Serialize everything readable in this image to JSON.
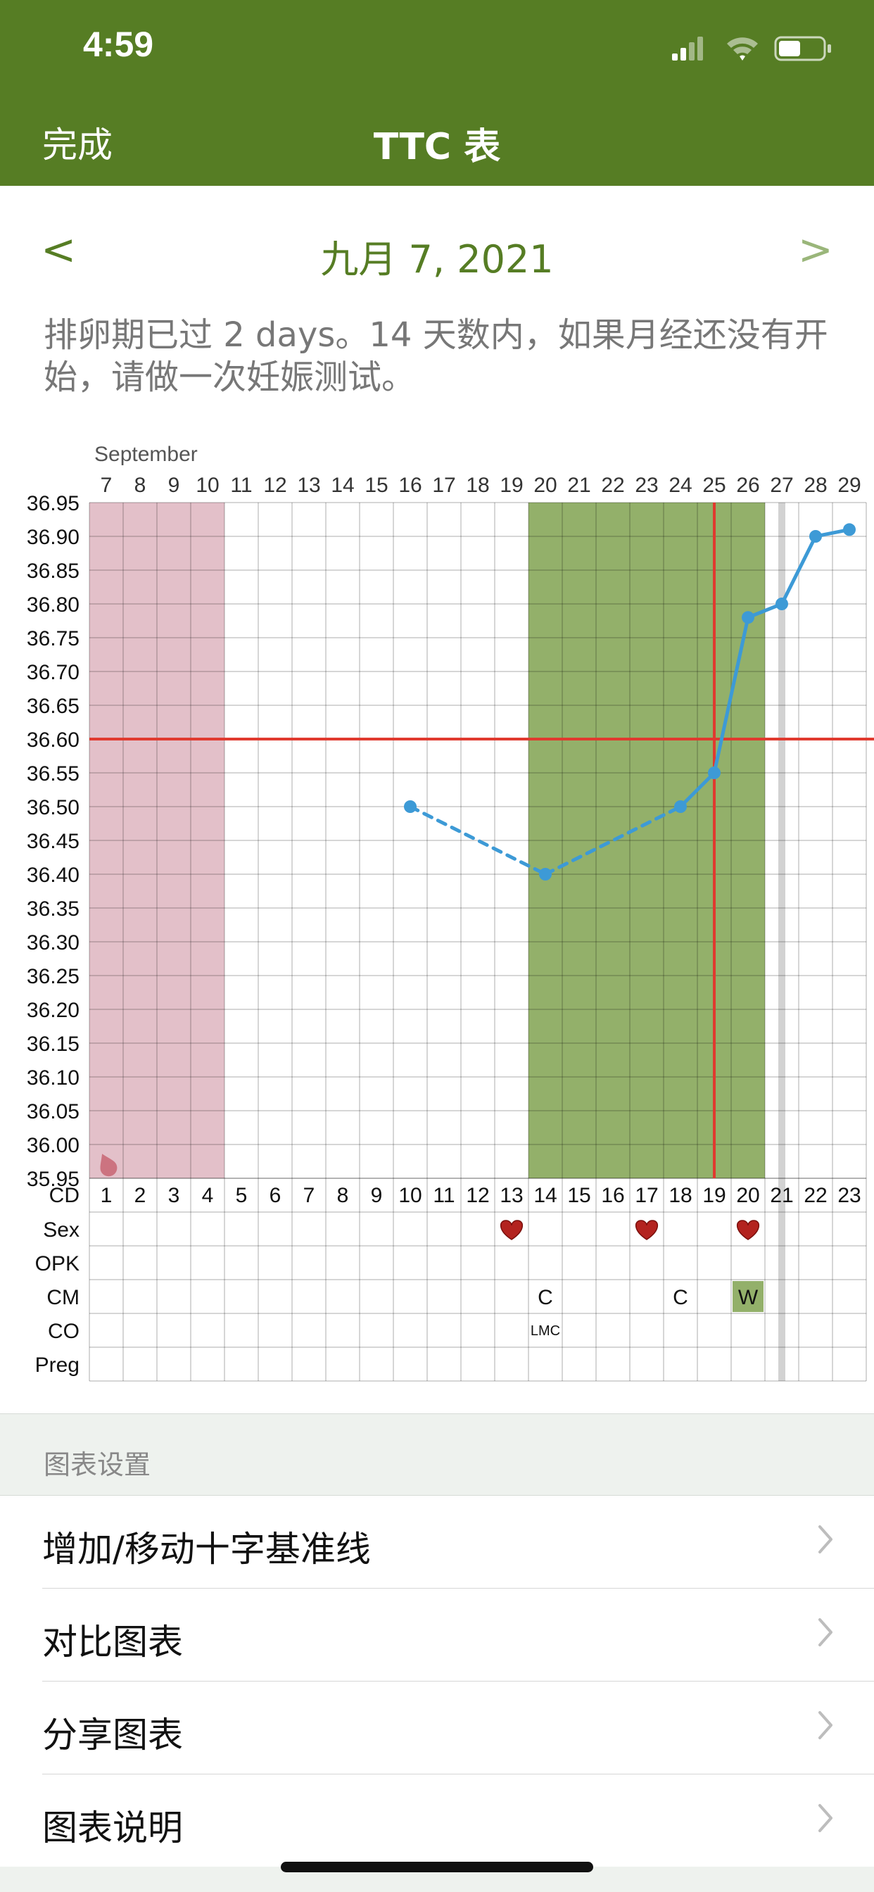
{
  "status_bar": {
    "time": "4:59"
  },
  "nav": {
    "done": "完成",
    "title": "TTC 表"
  },
  "date_nav": {
    "prev": "<",
    "label": "九月 7, 2021",
    "next": ">"
  },
  "message": "排卵期已过 2 days。14 天数内，如果月经还没有开始，请做一次妊娠测试。",
  "chart_data": {
    "type": "line",
    "month_label": "September",
    "dates": [
      "7",
      "8",
      "9",
      "10",
      "11",
      "12",
      "13",
      "14",
      "15",
      "16",
      "17",
      "18",
      "19",
      "20",
      "21",
      "22",
      "23",
      "24",
      "25",
      "26",
      "27",
      "28",
      "29"
    ],
    "cycle_days": [
      "1",
      "2",
      "3",
      "4",
      "5",
      "6",
      "7",
      "8",
      "9",
      "10",
      "11",
      "12",
      "13",
      "14",
      "15",
      "16",
      "17",
      "18",
      "19",
      "20",
      "21",
      "22",
      "23"
    ],
    "y_ticks": [
      "36.95",
      "36.90",
      "36.85",
      "36.80",
      "36.75",
      "36.70",
      "36.65",
      "36.60",
      "36.55",
      "36.50",
      "36.45",
      "36.40",
      "36.35",
      "36.30",
      "36.25",
      "36.20",
      "36.15",
      "36.10",
      "36.05",
      "36.00",
      "35.95"
    ],
    "ylim": [
      35.95,
      36.95
    ],
    "cd_label": "CD",
    "series": [
      {
        "x": [
          10,
          14,
          18,
          19,
          20,
          21,
          22,
          23
        ],
        "values": [
          36.5,
          36.4,
          36.5,
          36.55,
          36.78,
          36.8,
          36.9,
          36.91
        ],
        "color": "#3d9ad6"
      }
    ],
    "dashed_between": [
      [
        10,
        14
      ],
      [
        14,
        18
      ]
    ],
    "coverline": 36.6,
    "ovulation_day": 19,
    "period_days": [
      1,
      4
    ],
    "fertile_window": [
      14,
      20
    ],
    "today_marker_day": 21,
    "colors": {
      "period": "#e3c0c9",
      "fertile": "#93b06a",
      "line": "#3d9ad6",
      "coverline": "#e03a2f",
      "today": "#d2d2d2"
    },
    "rows": [
      {
        "label": "Sex",
        "entries": [
          {
            "day": 13,
            "icon": "heart-icon"
          },
          {
            "day": 17,
            "icon": "heart-icon"
          },
          {
            "day": 20,
            "icon": "heart-icon"
          }
        ]
      },
      {
        "label": "OPK",
        "entries": []
      },
      {
        "label": "CM",
        "entries": [
          {
            "day": 14,
            "text": "C"
          },
          {
            "day": 18,
            "text": "C"
          },
          {
            "day": 20,
            "text": "W",
            "highlight": true
          }
        ]
      },
      {
        "label": "CO",
        "entries": [
          {
            "day": 14,
            "text": "LMC",
            "small": true
          }
        ]
      },
      {
        "label": "Preg",
        "entries": []
      }
    ]
  },
  "settings": {
    "header": "图表设置",
    "items": [
      {
        "label": "增加/移动十字基准线"
      },
      {
        "label": "对比图表"
      },
      {
        "label": "分享图表"
      },
      {
        "label": "图表说明"
      }
    ]
  }
}
